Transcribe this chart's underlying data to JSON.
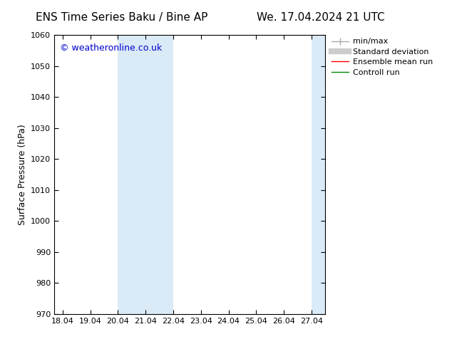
{
  "title_left": "ENS Time Series Baku / Bine AP",
  "title_right": "We. 17.04.2024 21 UTC",
  "ylabel": "Surface Pressure (hPa)",
  "x_ticks": [
    "18.04",
    "19.04",
    "20.04",
    "21.04",
    "22.04",
    "23.04",
    "24.04",
    "25.04",
    "26.04",
    "27.04"
  ],
  "x_tick_pos": [
    0,
    1,
    2,
    3,
    4,
    5,
    6,
    7,
    8,
    9
  ],
  "xlim": [
    -0.3,
    9.5
  ],
  "ylim": [
    970,
    1060
  ],
  "y_ticks": [
    970,
    980,
    990,
    1000,
    1010,
    1020,
    1030,
    1040,
    1050,
    1060
  ],
  "shade_band1_start": 2.0,
  "shade_band1_end": 4.0,
  "shade_band2_start": 9.0,
  "shade_band2_end": 9.5,
  "shade_color": "#daeaf7",
  "watermark": "© weatheronline.co.uk",
  "watermark_color": "#0000cc",
  "background_color": "#ffffff",
  "title_fontsize": 11,
  "tick_fontsize": 8,
  "ylabel_fontsize": 9,
  "legend_fontsize": 8,
  "legend_items": [
    {
      "label": "min/max",
      "color": "#aaaaaa",
      "lw": 1
    },
    {
      "label": "Standard deviation",
      "color": "#cccccc",
      "lw": 5
    },
    {
      "label": "Ensemble mean run",
      "color": "#ff0000",
      "lw": 1
    },
    {
      "label": "Controll run",
      "color": "#008800",
      "lw": 1
    }
  ]
}
